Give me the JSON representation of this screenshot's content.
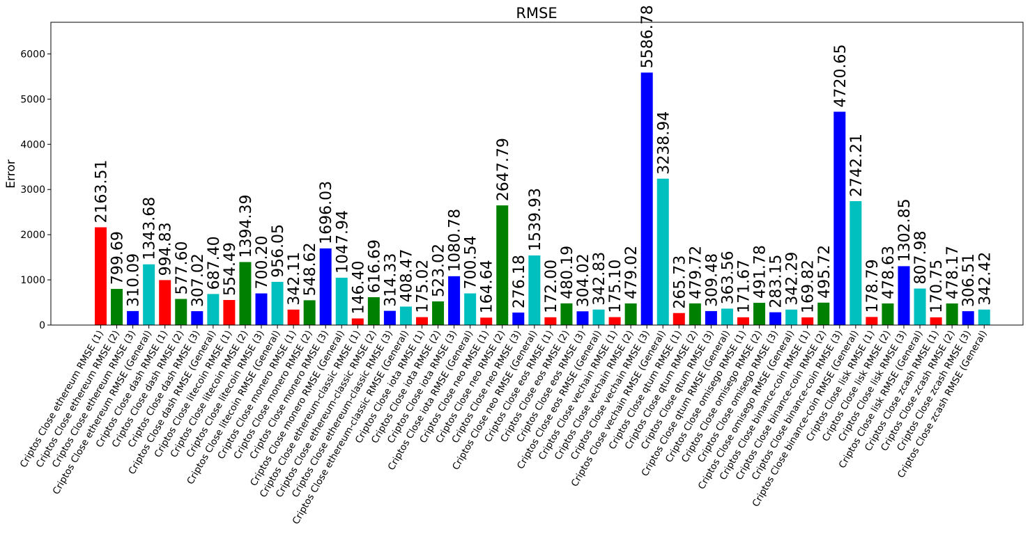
{
  "chart_data": {
    "type": "bar",
    "title": "RMSE",
    "xlabel": "",
    "ylabel": "Error",
    "ylim": [
      0,
      6700
    ],
    "yticks": [
      0,
      1000,
      2000,
      3000,
      4000,
      5000,
      6000
    ],
    "grid": false,
    "categories": [
      "Criptos Close ethereum RMSE (1)",
      "Criptos Close ethereum RMSE (2)",
      "Criptos Close ethereum RMSE (3)",
      "Criptos Close ethereum RMSE (General)",
      "Criptos Close dash RMSE (1)",
      "Criptos Close dash RMSE (2)",
      "Criptos Close dash RMSE (3)",
      "Criptos Close dash RMSE (General)",
      "Criptos Close litecoin RMSE (1)",
      "Criptos Close litecoin RMSE (2)",
      "Criptos Close litecoin RMSE (3)",
      "Criptos Close litecoin RMSE (General)",
      "Criptos Close monero RMSE (1)",
      "Criptos Close monero RMSE (2)",
      "Criptos Close monero RMSE (3)",
      "Criptos Close monero RMSE (General)",
      "Criptos Close ethereum-classic RMSE (1)",
      "Criptos Close ethereum-classic RMSE (2)",
      "Criptos Close ethereum-classic RMSE (3)",
      "Criptos Close ethereum-classic RMSE (General)",
      "Criptos Close iota RMSE (1)",
      "Criptos Close iota RMSE (2)",
      "Criptos Close iota RMSE (3)",
      "Criptos Close iota RMSE (General)",
      "Criptos Close neo RMSE (1)",
      "Criptos Close neo RMSE (2)",
      "Criptos Close neo RMSE (3)",
      "Criptos Close neo RMSE (General)",
      "Criptos Close eos RMSE (1)",
      "Criptos Close eos RMSE (2)",
      "Criptos Close eos RMSE (3)",
      "Criptos Close eos RMSE (General)",
      "Criptos Close vechain RMSE (1)",
      "Criptos Close vechain RMSE (2)",
      "Criptos Close vechain RMSE (3)",
      "Criptos Close vechain RMSE (General)",
      "Criptos Close qtum RMSE (1)",
      "Criptos Close qtum RMSE (2)",
      "Criptos Close qtum RMSE (3)",
      "Criptos Close qtum RMSE (General)",
      "Criptos Close omisego RMSE (1)",
      "Criptos Close omisego RMSE (2)",
      "Criptos Close omisego RMSE (3)",
      "Criptos Close omisego RMSE (General)",
      "Criptos Close binance-coin RMSE (1)",
      "Criptos Close binance-coin RMSE (2)",
      "Criptos Close binance-coin RMSE (3)",
      "Criptos Close binance-coin RMSE (General)",
      "Criptos Close lisk RMSE (1)",
      "Criptos Close lisk RMSE (2)",
      "Criptos Close lisk RMSE (3)",
      "Criptos Close lisk RMSE (General)",
      "Criptos Close zcash RMSE (1)",
      "Criptos Close zcash RMSE (2)",
      "Criptos Close zcash RMSE (3)",
      "Criptos Close zcash RMSE (General)"
    ],
    "values": [
      2163.51,
      799.69,
      310.09,
      1343.68,
      994.83,
      577.6,
      307.02,
      687.4,
      554.49,
      1394.39,
      700.2,
      956.05,
      342.11,
      548.62,
      1696.03,
      1047.94,
      146.4,
      616.69,
      314.33,
      408.47,
      175.02,
      523.02,
      1080.78,
      700.54,
      164.64,
      2647.79,
      276.18,
      1539.93,
      172.0,
      480.19,
      304.02,
      342.83,
      175.1,
      479.02,
      5586.78,
      3238.94,
      265.73,
      479.72,
      309.48,
      363.56,
      171.67,
      491.78,
      283.15,
      342.29,
      169.82,
      495.72,
      4720.65,
      2742.21,
      178.79,
      478.63,
      1302.85,
      807.98,
      170.75,
      478.17,
      306.51,
      342.42
    ],
    "value_labels": [
      "2163.51",
      "799.69",
      "310.09",
      "1343.68",
      "994.83",
      "577.60",
      "307.02",
      "687.40",
      "554.49",
      "1394.39",
      "700.20",
      "956.05",
      "342.11",
      "548.62",
      "1696.03",
      "1047.94",
      "146.40",
      "616.69",
      "314.33",
      "408.47",
      "175.02",
      "523.02",
      "1080.78",
      "700.54",
      "164.64",
      "2647.79",
      "276.18",
      "1539.93",
      "172.00",
      "480.19",
      "304.02",
      "342.83",
      "175.10",
      "479.02",
      "5586.78",
      "3238.94",
      "265.73",
      "479.72",
      "309.48",
      "363.56",
      "171.67",
      "491.78",
      "283.15",
      "342.29",
      "169.82",
      "495.72",
      "4720.65",
      "2742.21",
      "178.79",
      "478.63",
      "1302.85",
      "807.98",
      "170.75",
      "478.17",
      "306.51",
      "342.42"
    ],
    "colors": [
      "#ff0000",
      "#008000",
      "#0000ff",
      "#00bfbf"
    ]
  }
}
